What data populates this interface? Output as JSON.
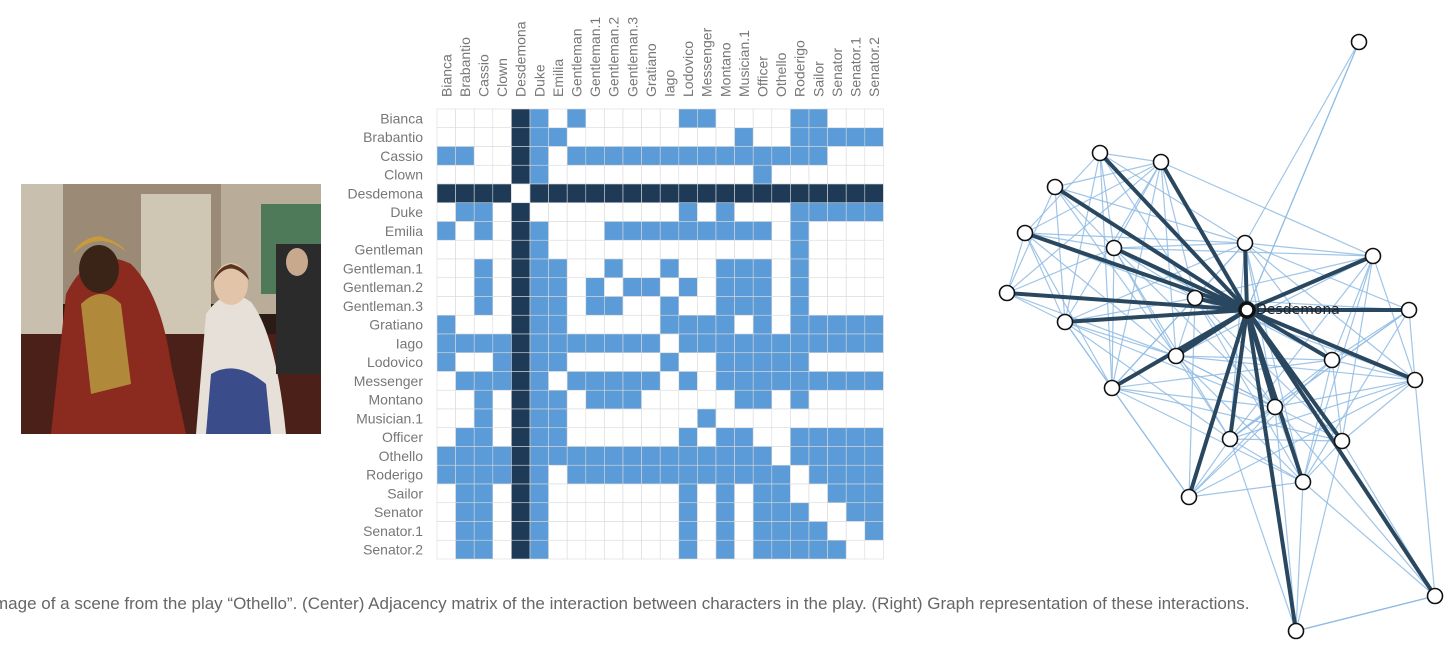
{
  "caption": "mage of a scene from the play “Othello”. (Center) Adjacency matrix of the interaction between characters in the play. (Right) Graph representation of these interactions.",
  "characters": [
    "Bianca",
    "Brabantio",
    "Cassio",
    "Clown",
    "Desdemona",
    "Duke",
    "Emilia",
    "Gentleman",
    "Gentleman.1",
    "Gentleman.2",
    "Gentleman.3",
    "Gratiano",
    "Iago",
    "Lodovico",
    "Messenger",
    "Montano",
    "Musician.1",
    "Officer",
    "Othello",
    "Roderigo",
    "Sailor",
    "Senator",
    "Senator.1",
    "Senator.2"
  ],
  "highlighted_character": "Desdemona",
  "matrix_rows": [
    "000001010000011000011000",
    "000011100000000010011111",
    "111011011111111111111000",
    "000001000000000001000000",
    "111111111111111111111111",
    "011011000000010100011111",
    "101011000111111111010000",
    "000001000000000000010000",
    "001001101100100111010000",
    "001001101011010111010000",
    "001001101100100111010000",
    "100011100000111101011111",
    "111111111111111111111111",
    "100111100000110111110000",
    "011111011111011111111111",
    "001011101110000011010000",
    "001001100000001000000000",
    "011011100000010111011111",
    "111111111111111111111111",
    "111111011111111111111111",
    "011011000000010101101111",
    "011011000000010101110111",
    "011011000000010101111011",
    "011011000000010101111101"
  ],
  "colors": {
    "edge": "#5b9bd8",
    "desdemona": "#1e3a57",
    "empty": "#ffffff",
    "grid": "#d9d9d9",
    "graph_edge": "#8fbbe3",
    "graph_edge_strong": "#2a4760"
  },
  "painting_icon": "painting-othello-desdemona"
}
